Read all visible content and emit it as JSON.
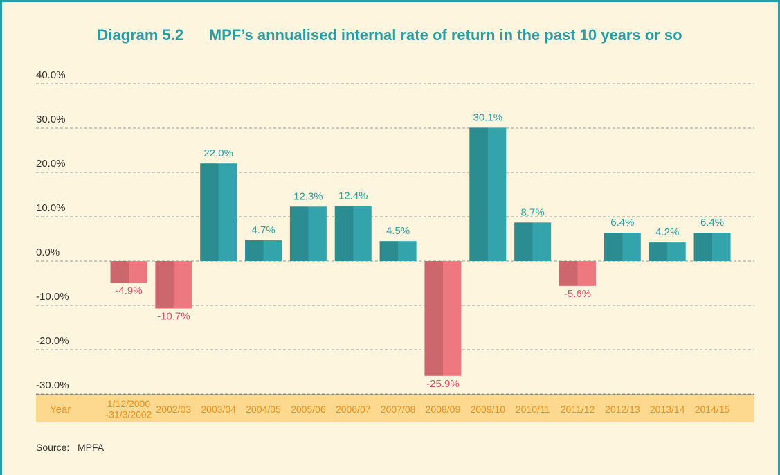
{
  "chart_data": {
    "type": "bar",
    "title": "Diagram 5.2      MPF’s annualised internal rate of return in the past 10 years or so",
    "x_label": "Year",
    "source_label": "Source:",
    "source": "MPFA",
    "categories": [
      "1/12/2000\n-31/3/2002",
      "2002/03",
      "2003/04",
      "2004/05",
      "2005/06",
      "2006/07",
      "2007/08",
      "2008/09",
      "2009/10",
      "2010/11",
      "2011/12",
      "2012/13",
      "2013/14",
      "2014/15"
    ],
    "values": [
      -4.9,
      -10.7,
      22.0,
      4.7,
      12.3,
      12.4,
      4.5,
      -25.9,
      30.1,
      8.7,
      -5.6,
      6.4,
      4.2,
      6.4
    ],
    "value_labels": [
      "-4.9%",
      "-10.7%",
      "22.0%",
      "4.7%",
      "12.3%",
      "12.4%",
      "4.5%",
      "-25.9%",
      "30.1%",
      "8.7%",
      "-5.6%",
      "6.4%",
      "4.2%",
      "6.4%"
    ],
    "colors": {
      "positive": "#33a4ab",
      "negative": "#ee7880"
    },
    "ylim": [
      -30,
      40
    ],
    "yticks": [
      {
        "value": -30,
        "label": "-30.0%"
      },
      {
        "value": -20,
        "label": "-20.0%"
      },
      {
        "value": -10,
        "label": "-10.0%"
      },
      {
        "value": 0,
        "label": "0.0%"
      },
      {
        "value": 10,
        "label": "10.0%"
      },
      {
        "value": 20,
        "label": "20.0%"
      },
      {
        "value": 30,
        "label": "30.0%"
      },
      {
        "value": 40,
        "label": "40.0%"
      }
    ],
    "grid": true
  }
}
